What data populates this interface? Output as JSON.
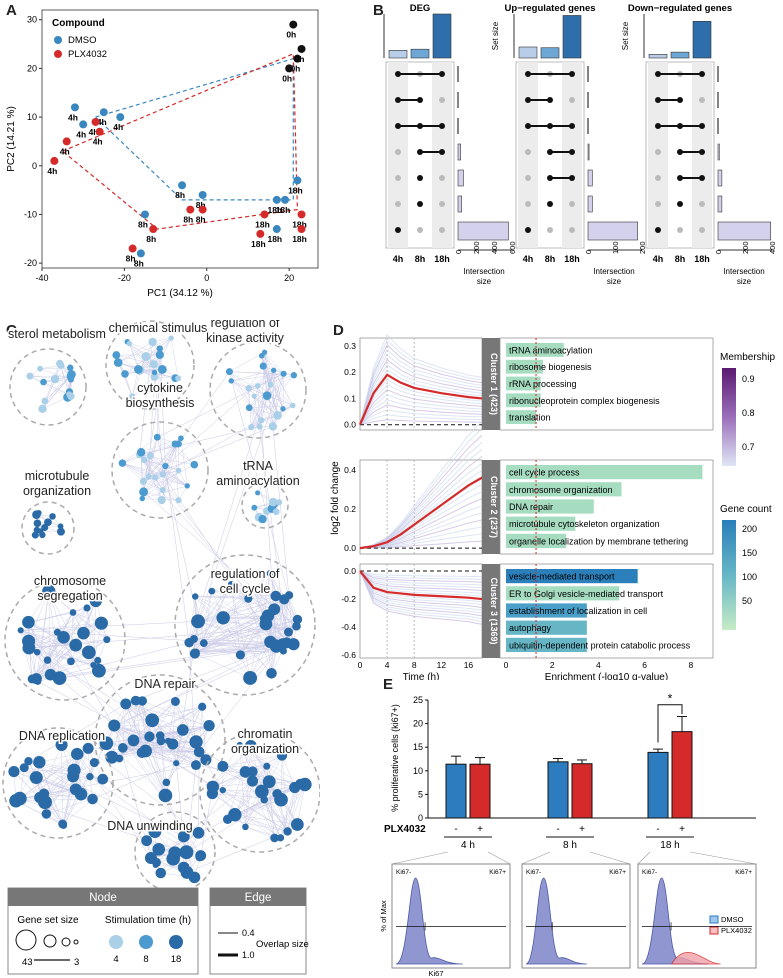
{
  "panels": {
    "a": "A",
    "b": "B",
    "c": "C",
    "d": "D",
    "e": "E"
  },
  "pca": {
    "xlabel": "PC1 (34.12 %)",
    "ylabel": "PC2 (14.21 %)",
    "legend_title": "Compound",
    "xticks": [
      -40,
      -20,
      0,
      20
    ],
    "yticks": [
      30,
      20,
      10,
      0,
      -10,
      -20
    ],
    "colors": {
      "DMSO": "#3a87c0",
      "PLX4032": "#d42a2a",
      "0h": "#111111"
    }
  },
  "chart_data": [
    {
      "type": "scatter",
      "panel": "A",
      "xlabel": "PC1 (34.12 %)",
      "ylabel": "PC2 (14.21 %)",
      "xlim": [
        -40,
        27
      ],
      "ylim": [
        -21,
        32
      ],
      "legend": {
        "title": "Compound",
        "entries": [
          "DMSO",
          "PLX4032"
        ],
        "placement": "top-left"
      },
      "series": [
        {
          "name": "DMSO",
          "points": [
            {
              "x": -32,
              "y": 12,
              "label": "4h"
            },
            {
              "x": -30,
              "y": 8.5,
              "label": "4h"
            },
            {
              "x": -25,
              "y": 11,
              "label": "4h"
            },
            {
              "x": -21,
              "y": 10,
              "label": "4h"
            },
            {
              "x": -6,
              "y": -4,
              "label": "8h"
            },
            {
              "x": -1,
              "y": -6,
              "label": "8h"
            },
            {
              "x": -16,
              "y": -18,
              "label": "8h"
            },
            {
              "x": -15,
              "y": -10,
              "label": "8h"
            },
            {
              "x": 17,
              "y": -7,
              "label": "18h"
            },
            {
              "x": 19,
              "y": -7,
              "label": "18h"
            },
            {
              "x": 22,
              "y": -3,
              "label": "18h"
            },
            {
              "x": 17,
              "y": -13,
              "label": "18h"
            }
          ]
        },
        {
          "name": "PLX4032",
          "points": [
            {
              "x": -37,
              "y": 1,
              "label": "4h"
            },
            {
              "x": -34,
              "y": 5,
              "label": "4h"
            },
            {
              "x": -27,
              "y": 9,
              "label": "4h"
            },
            {
              "x": -26,
              "y": 7,
              "label": "4h"
            },
            {
              "x": -4,
              "y": -9,
              "label": "8h"
            },
            {
              "x": -1,
              "y": -9,
              "label": "8h"
            },
            {
              "x": -18,
              "y": -17,
              "label": "8h"
            },
            {
              "x": -13,
              "y": -13,
              "label": "8h"
            },
            {
              "x": 14,
              "y": -10,
              "label": "18h"
            },
            {
              "x": 23,
              "y": -10,
              "label": "18h"
            },
            {
              "x": 13,
              "y": -14,
              "label": "18h"
            },
            {
              "x": 23,
              "y": -13,
              "label": "18h"
            }
          ]
        },
        {
          "name": "0h",
          "points": [
            {
              "x": 21,
              "y": 29,
              "label": "0h"
            },
            {
              "x": 22,
              "y": 22,
              "label": "0h"
            },
            {
              "x": 23,
              "y": 24,
              "label": "0h"
            },
            {
              "x": 20,
              "y": 20,
              "label": "0h"
            }
          ]
        }
      ]
    },
    {
      "type": "bar",
      "panel": "B",
      "subplots": [
        {
          "title": "DEG",
          "set_sizes": [
            140,
            160,
            800
          ],
          "intersections": [
            0,
            0,
            0,
            30,
            60,
            40,
            560
          ],
          "int_axis_ticks": [
            "0",
            "200",
            "400",
            "600"
          ],
          "set_axis_ticks": [
            "0",
            "200",
            "400",
            "600",
            "800"
          ]
        },
        {
          "title": "Up−regulated genes",
          "set_sizes": [
            75,
            70,
            290
          ],
          "intersections": [
            0,
            0,
            0,
            5,
            20,
            20,
            230
          ],
          "int_axis_ticks": [
            "0",
            "100",
            "200"
          ],
          "set_axis_ticks": [
            "0",
            "100",
            "200",
            "300"
          ]
        },
        {
          "title": "Down−regulated genes",
          "set_sizes": [
            50,
            80,
            500
          ],
          "intersections": [
            0,
            0,
            0,
            10,
            30,
            30,
            410
          ],
          "int_axis_ticks": [
            "0",
            "200",
            "400"
          ],
          "set_axis_ticks": [
            "0",
            "200",
            "400",
            "600"
          ]
        }
      ],
      "set_names": [
        "4h",
        "8h",
        "18h"
      ],
      "ylabel": "Set size",
      "xlabel": "Intersection size"
    },
    {
      "type": "line",
      "panel": "D",
      "clusters": [
        {
          "name": "Cluster 1 (423)",
          "x": [
            0,
            2,
            4,
            6,
            8,
            12,
            16,
            18
          ],
          "y": [
            0,
            0.12,
            0.19,
            0.16,
            0.14,
            0.12,
            0.105,
            0.1
          ],
          "ylim": [
            -0.02,
            0.33
          ],
          "yticks": [
            "0.3",
            "0.2",
            "0.1",
            "0.0"
          ]
        },
        {
          "name": "Cluster 2 (237)",
          "x": [
            0,
            2,
            4,
            6,
            8,
            12,
            16,
            18
          ],
          "y": [
            0,
            0.01,
            0.03,
            0.07,
            0.12,
            0.22,
            0.32,
            0.36
          ],
          "ylim": [
            -0.03,
            0.45
          ],
          "yticks": [
            "0.4",
            "0.2",
            "0.0"
          ]
        },
        {
          "name": "Cluster 3 (1369)",
          "x": [
            0,
            2,
            4,
            6,
            8,
            12,
            16,
            18
          ],
          "y": [
            0,
            -0.12,
            -0.15,
            -0.16,
            -0.17,
            -0.18,
            -0.19,
            -0.2
          ],
          "ylim": [
            -0.62,
            0.05
          ],
          "yticks": [
            "0.0",
            "-0.2",
            "-0.4",
            "-0.6"
          ]
        }
      ],
      "xlabel": "Time (h)",
      "ylabel": "log2 fold change",
      "xticks": [
        0,
        4,
        8,
        12,
        16
      ]
    },
    {
      "type": "bar",
      "panel": "D-enrichment",
      "xlabel": "Enrichment (-log10 q-value)",
      "xticks": [
        0,
        2,
        4,
        6,
        8
      ],
      "groups": [
        {
          "terms": [
            {
              "name": "tRNA aminoacylation",
              "value": 2.5,
              "count": 30
            },
            {
              "name": "ribosome biogenesis",
              "value": 1.6,
              "count": 40
            },
            {
              "name": "rRNA processing",
              "value": 1.5,
              "count": 35
            },
            {
              "name": "ribonucleoprotein complex biogenesis",
              "value": 1.5,
              "count": 45
            },
            {
              "name": "translation",
              "value": 1.3,
              "count": 40
            }
          ]
        },
        {
          "terms": [
            {
              "name": "cell cycle process",
              "value": 8.5,
              "count": 80
            },
            {
              "name": "chromosome organization",
              "value": 5.0,
              "count": 70
            },
            {
              "name": "DNA repair",
              "value": 3.8,
              "count": 60
            },
            {
              "name": "microtubule cytoskeleton organization",
              "value": 3.0,
              "count": 55
            },
            {
              "name": "organelle localization by membrane tethering",
              "value": 2.6,
              "count": 35
            }
          ]
        },
        {
          "terms": [
            {
              "name": "vesicle-mediated transport",
              "value": 5.7,
              "count": 210
            },
            {
              "name": "ER to Golgi vesicle-mediated transport",
              "value": 4.9,
              "count": 60
            },
            {
              "name": "establishment of localization in cell",
              "value": 3.5,
              "count": 200
            },
            {
              "name": "autophagy",
              "value": 3.5,
              "count": 110
            },
            {
              "name": "ubiquitin-dependent protein catabolic process",
              "value": 3.5,
              "count": 100
            }
          ]
        }
      ]
    },
    {
      "type": "bar",
      "panel": "E",
      "ylabel": "% proliferative cells (ki67+)",
      "yticks": [
        0,
        5,
        10,
        15,
        20,
        25
      ],
      "ylim": [
        0,
        25
      ],
      "categories": [
        "4 h",
        "8 h",
        "18 h"
      ],
      "series": [
        {
          "name": "DMSO",
          "values": [
            11.4,
            11.9,
            13.9
          ],
          "errors": [
            1.7,
            0.7,
            0.7
          ]
        },
        {
          "name": "PLX4032",
          "values": [
            11.4,
            11.5,
            18.3
          ],
          "errors": [
            1.4,
            0.8,
            3.2
          ]
        }
      ],
      "significance": "*",
      "row_label": "PLX4032",
      "signs": [
        "-",
        "+",
        "-",
        "+",
        "-",
        "+"
      ]
    }
  ],
  "networkC": {
    "clusters": [
      "sterol metabolism",
      "response to\nchemical stimulus",
      "regulation of\nkinase activity",
      "cytokine\nbiosynthesis",
      "microtubule\norganization",
      "tRNA\naminoacylation",
      "chromosome\nsegregation",
      "regulation of\ncell cycle",
      "DNA repair",
      "DNA replication",
      "chromatin\norganization",
      "DNA unwinding"
    ],
    "legend": {
      "node_title": "Node",
      "edge_title": "Edge",
      "gene_set_size": "Gene set size",
      "stimulation": "Stimulation time (h)",
      "size_min": "43",
      "size_max": "3",
      "times": [
        "4",
        "8",
        "18"
      ],
      "overlap": "Overlap size",
      "overlap_min": "0.4",
      "overlap_max": "1.0",
      "time_colors": [
        "#a9d0e8",
        "#4b9bd0",
        "#2a6aa6"
      ]
    }
  },
  "legendD": {
    "membership": "Membership",
    "membership_ticks": [
      "0.9",
      "0.8",
      "0.7"
    ],
    "genecount": "Gene count",
    "genecount_ticks": [
      "200",
      "150",
      "100",
      "50"
    ]
  },
  "flowE": {
    "ylabel": "% of Max",
    "xlabel": "Ki67",
    "neg": "Ki67-",
    "pos": "Ki67+",
    "legend": [
      "DMSO",
      "PLX4032"
    ]
  },
  "upset_labels": {
    "ylabel": "Set size",
    "xlabel_1": "Intersection",
    "xlabel_2": "size"
  }
}
